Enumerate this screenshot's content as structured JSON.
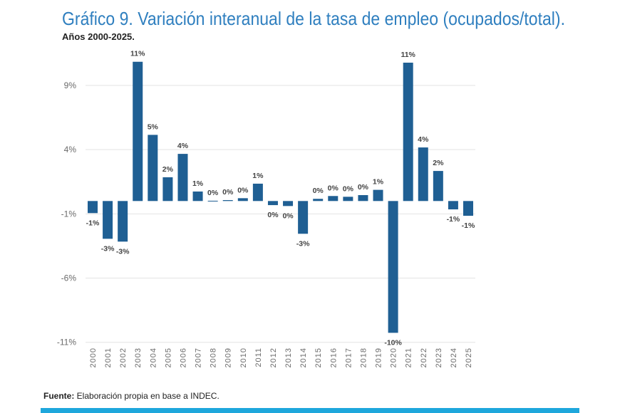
{
  "chart_data": {
    "type": "bar",
    "title": "Gráfico 9. Variación interanual de la tasa de empleo  (ocupados/total).",
    "subtitle": "Años 2000-2025.",
    "xlabel": "",
    "ylabel": "",
    "categories": [
      "2000",
      "2001",
      "2002",
      "2003",
      "2004",
      "2005",
      "2006",
      "2007",
      "2008",
      "2009",
      "2010",
      "2011",
      "2012",
      "2013",
      "2014",
      "2015",
      "2016",
      "2017",
      "2018",
      "2019",
      "2020",
      "2021",
      "2022",
      "2023",
      "2024",
      "2025"
    ],
    "values": [
      -0.94,
      -2.94,
      -3.16,
      10.84,
      5.15,
      1.85,
      3.67,
      0.74,
      0.02,
      0.07,
      0.22,
      1.35,
      -0.32,
      -0.39,
      -2.55,
      0.17,
      0.39,
      0.33,
      0.46,
      0.87,
      -10.26,
      10.77,
      4.17,
      2.34,
      -0.65,
      -1.15
    ],
    "data_labels": [
      "-1%",
      "-3%",
      "-3%",
      "11%",
      "5%",
      "2%",
      "4%",
      "1%",
      "0%",
      "0%",
      "0%",
      "1%",
      "0%",
      "0%",
      "-3%",
      "0%",
      "0%",
      "0%",
      "0%",
      "1%",
      "-10%",
      "11%",
      "4%",
      "2%",
      "-1%",
      "-1%"
    ],
    "yticks": [
      9,
      4,
      -1,
      -6,
      -11
    ],
    "ytick_labels": [
      "9%",
      "4%",
      "-1%",
      "-6%",
      "-11%"
    ],
    "ylim": [
      -11,
      11.5
    ],
    "grid": true,
    "legend": "none",
    "bar_color": "#1f5f93"
  },
  "source": {
    "label": "Fuente:",
    "text": " Elaboración propia en base a INDEC."
  },
  "colors": {
    "title": "#2f7fbf",
    "footer_band": "#1ea7dc"
  }
}
